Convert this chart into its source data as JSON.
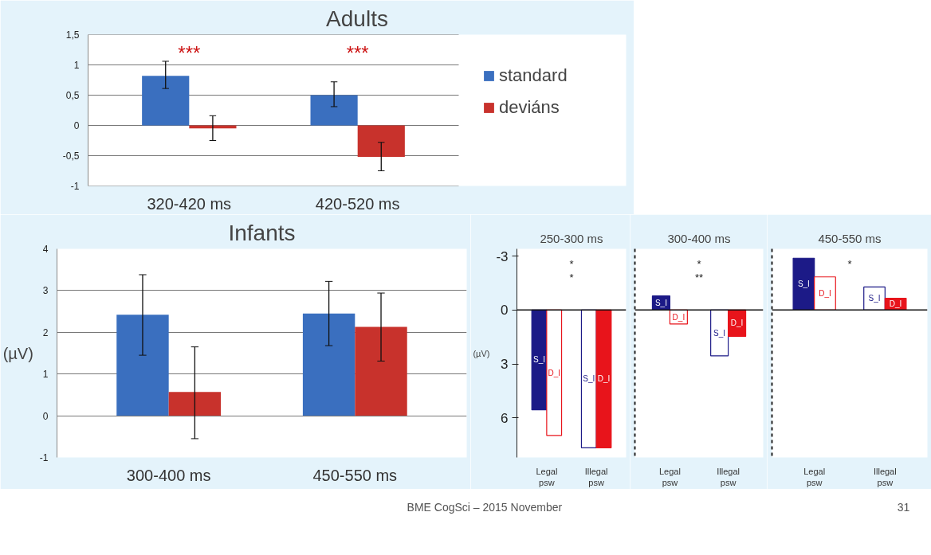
{
  "chart_data": [
    {
      "type": "bar",
      "title": "Adults",
      "categories": [
        "320-420 ms",
        "420-520 ms"
      ],
      "series": [
        {
          "name": "standard",
          "color": "#3a6fbf",
          "values": [
            0.82,
            0.5
          ],
          "errors": [
            [
              0.61,
              1.06
            ],
            [
              0.31,
              0.72
            ]
          ]
        },
        {
          "name": "deviáns",
          "color": "#c8322c",
          "values": [
            -0.05,
            -0.52
          ],
          "errors": [
            [
              -0.25,
              0.16
            ],
            [
              -0.75,
              -0.28
            ]
          ]
        }
      ],
      "ylim": [
        -1,
        1.5
      ],
      "yticks": [
        -1,
        {
          "value": -0.5,
          "label": "-0,5"
        },
        0,
        {
          "value": 0.5,
          "label": "0,5"
        },
        1,
        {
          "value": 1.5,
          "label": "1,5"
        }
      ],
      "grid": "y",
      "legend": "right",
      "annotations": [
        "***",
        "***"
      ]
    },
    {
      "type": "bar",
      "title": "Infants",
      "ylabel": "(µV)",
      "categories": [
        "300-400 ms",
        "450-550 ms"
      ],
      "series": [
        {
          "color": "#3a6fbf",
          "values": [
            2.42,
            2.45
          ],
          "errors": [
            [
              1.45,
              3.38
            ],
            [
              1.68,
              3.22
            ]
          ]
        },
        {
          "color": "#c8322c",
          "values": [
            0.57,
            2.13
          ],
          "errors": [
            [
              -0.55,
              1.65
            ],
            [
              1.31,
              2.94
            ]
          ]
        }
      ],
      "ylim": [
        -1,
        4
      ],
      "yticks": [
        -1,
        0,
        1,
        2,
        3,
        4
      ],
      "grid": "y",
      "legend": false
    },
    {
      "type": "bar",
      "title": "250-300 ms",
      "ylabel": "(µV)",
      "categories": [
        "Legal psw",
        "Illegal psw"
      ],
      "series": [
        {
          "name": "S_I",
          "color": "#1c1a87",
          "colors": [
            "#1c1a87",
            "#ffffff"
          ],
          "values": [
            5.55,
            7.66
          ]
        },
        {
          "name": "D_I",
          "color": "#e8141b",
          "colors": [
            "#ffffff",
            "#e8141b"
          ],
          "values": [
            6.98,
            7.66
          ]
        }
      ],
      "ylim": [
        8.2,
        -3.4
      ],
      "yticks": [
        -3,
        0,
        3,
        6
      ],
      "ref_lines": [
        {
          "axis": "y",
          "value": 0
        }
      ],
      "annotations": [
        "*",
        "*"
      ],
      "legend": false,
      "grid": false
    },
    {
      "type": "bar",
      "title": "300-400 ms",
      "categories": [
        "Legal psw",
        "Illegal psw"
      ],
      "series": [
        {
          "name": "S_I",
          "color": "#1c1a87",
          "colors": [
            "#1c1a87",
            "#ffffff"
          ],
          "values": [
            -0.78,
            2.55
          ]
        },
        {
          "name": "D_I",
          "color": "#e8141b",
          "colors": [
            "#ffffff",
            "#e8141b"
          ],
          "values": [
            0.78,
            1.47
          ]
        }
      ],
      "ylim": [
        8.2,
        -3.4
      ],
      "yticks": [
        -3,
        0,
        3,
        6
      ],
      "tick_labels": "x",
      "ref_lines": [
        {
          "axis": "y",
          "value": 0
        }
      ],
      "annotations": [
        "*",
        "**"
      ],
      "legend": false,
      "grid": false
    },
    {
      "type": "bar",
      "title": "450-550 ms",
      "categories": [
        "Legal psw",
        "Illegal psw"
      ],
      "series": [
        {
          "name": "S_I",
          "color": "#1c1a87",
          "colors": [
            "#1c1a87",
            "#ffffff"
          ],
          "values": [
            -2.88,
            -1.28
          ]
        },
        {
          "name": "D_I",
          "color": "#e8141b",
          "colors": [
            "#ffffff",
            "#e8141b"
          ],
          "values": [
            -1.84,
            -0.65
          ]
        }
      ],
      "ylim": [
        8.2,
        -3.4
      ],
      "yticks": [
        -3,
        0,
        3,
        6
      ],
      "tick_labels": "x",
      "ref_lines": [
        {
          "axis": "y",
          "value": 0
        }
      ],
      "annotations": [
        "*"
      ],
      "legend": false,
      "grid": false
    },
    {
      "type": "other",
      "annotations": [
        "BME CogSci – 2015 November",
        "31"
      ]
    }
  ]
}
